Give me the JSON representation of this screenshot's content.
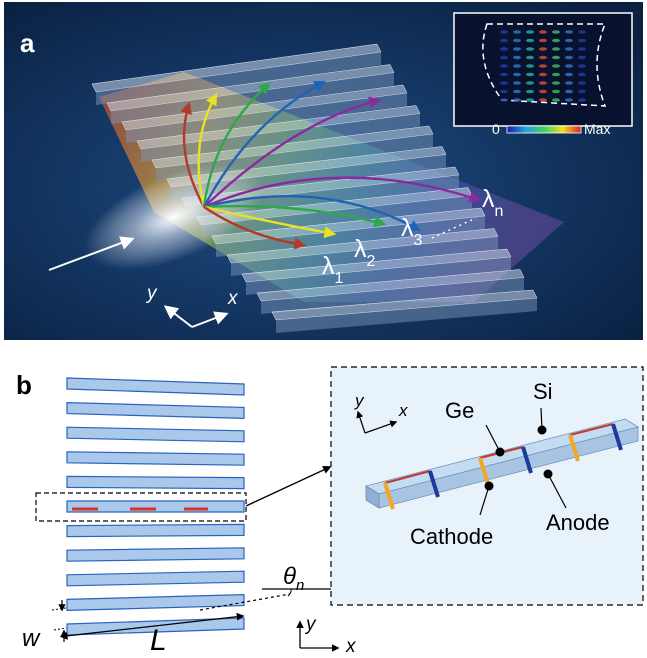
{
  "panel_a": {
    "label": "a",
    "wavelength_labels": [
      {
        "base": "λ",
        "sub": "1"
      },
      {
        "base": "λ",
        "sub": "2"
      },
      {
        "base": "λ",
        "sub": "3"
      },
      {
        "base": "λ",
        "sub": "n"
      }
    ],
    "axes": {
      "y": "y",
      "x": "x"
    },
    "inset": {
      "colorbar_min": "0",
      "colorbar_max": "Max"
    },
    "colors": {
      "background": "#0e2a52",
      "arrows": [
        "#b33a2a",
        "#e8e023",
        "#2fa84a",
        "#1f63b5",
        "#8a2aa0"
      ]
    }
  },
  "panel_b": {
    "label": "b",
    "dimension_labels": {
      "width": "w",
      "length": "L",
      "angle": "θ",
      "angle_sub": "n"
    },
    "axes": {
      "y": "y",
      "x": "x"
    },
    "inset": {
      "axes": {
        "y": "y",
        "x": "x"
      },
      "labels": {
        "ge": "Ge",
        "si": "Si",
        "cathode": "Cathode",
        "anode": "Anode"
      }
    },
    "colors": {
      "waveguide": "#a9c8ea",
      "electrode": "#e03020",
      "cathode": "#f5a623",
      "anode": "#1b3a9a",
      "inset_background": "#e8f2fa"
    }
  }
}
